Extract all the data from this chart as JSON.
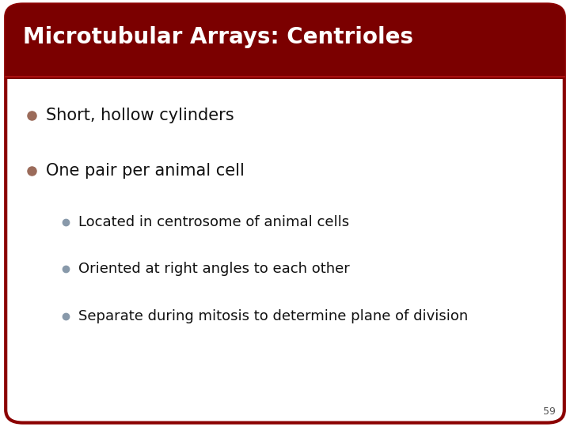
{
  "title": "Microtubular Arrays: Centrioles",
  "title_bg_color": "#7B0000",
  "title_text_color": "#FFFFFF",
  "slide_bg_color": "#FFFFFF",
  "border_color": "#8B0000",
  "bullet1_text": "Short, hollow cylinders",
  "bullet2_text": "One pair per animal cell",
  "bullet1_dot_color": "#9B6B5A",
  "bullet2_dot_color": "#9B6B5A",
  "sub_bullet_dot_color": "#8899AA",
  "sub_bullets": [
    "Located in centrosome of animal cells",
    "Oriented at right angles to each other",
    "Separate during mitosis to determine plane of division"
  ],
  "main_text_color": "#111111",
  "sub_text_color": "#111111",
  "page_number": "59",
  "page_num_color": "#555555",
  "separator_color": "#AA1111",
  "fig_width": 7.2,
  "fig_height": 5.4,
  "dpi": 100
}
